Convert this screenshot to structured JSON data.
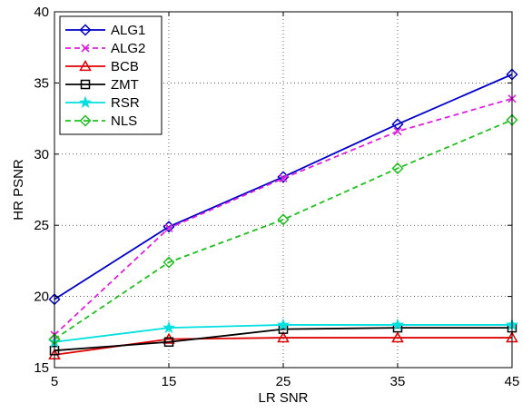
{
  "chart_data": {
    "type": "line",
    "xlabel": "LR SNR",
    "ylabel": "HR PSNR",
    "x": [
      5,
      15,
      25,
      35,
      45
    ],
    "xlim": [
      5,
      45
    ],
    "ylim": [
      15,
      40
    ],
    "xticks": [
      "5",
      "15",
      "25",
      "35",
      "45"
    ],
    "yticks": [
      "15",
      "20",
      "25",
      "30",
      "35",
      "40"
    ],
    "grid": true,
    "legend_position": "top-left",
    "series": [
      {
        "name": "ALG1",
        "values": [
          19.8,
          24.9,
          28.4,
          32.1,
          35.6
        ],
        "color": "#0000cc",
        "dash": "solid",
        "marker": "diamond"
      },
      {
        "name": "ALG2",
        "values": [
          17.3,
          24.8,
          28.3,
          31.6,
          33.9
        ],
        "color": "#e020e0",
        "dash": "dashed",
        "marker": "x"
      },
      {
        "name": "BCB",
        "values": [
          15.9,
          17.0,
          17.1,
          17.1,
          17.1
        ],
        "color": "#e00000",
        "dash": "solid",
        "marker": "triangle"
      },
      {
        "name": "ZMT",
        "values": [
          16.2,
          16.8,
          17.7,
          17.8,
          17.8
        ],
        "color": "#000000",
        "dash": "solid",
        "marker": "square"
      },
      {
        "name": "RSR",
        "values": [
          16.8,
          17.8,
          18.0,
          18.0,
          18.0
        ],
        "color": "#00e0e0",
        "dash": "solid",
        "marker": "star"
      },
      {
        "name": "NLS",
        "values": [
          17.0,
          22.4,
          25.4,
          29.0,
          32.4
        ],
        "color": "#20c020",
        "dash": "dashed",
        "marker": "diamond"
      }
    ]
  }
}
